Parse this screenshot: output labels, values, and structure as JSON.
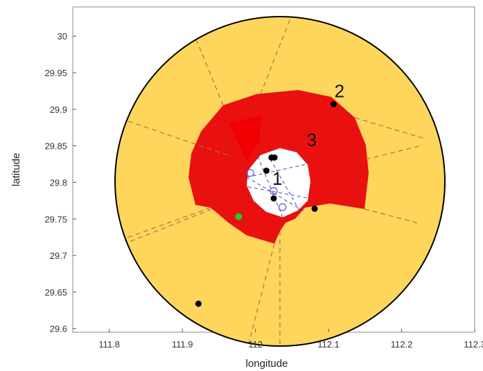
{
  "chart_data": {
    "type": "scatter",
    "title": "",
    "xlabel": "longitude",
    "ylabel": "latitude",
    "xlim": [
      111.75,
      112.3
    ],
    "ylim": [
      29.595,
      30.04
    ],
    "x_ticks": [
      "111.8",
      "111.9",
      "112",
      "112.1",
      "112.2",
      "112.3"
    ],
    "y_ticks": [
      "29.6",
      "29.65",
      "29.7",
      "29.75",
      "29.8",
      "29.85",
      "29.9",
      "29.95",
      "30"
    ],
    "grid": false,
    "legend": "none",
    "region_labels": [
      {
        "text": "1",
        "x": 112.03,
        "y": 29.805
      },
      {
        "text": "2",
        "x": 112.115,
        "y": 29.925
      },
      {
        "text": "3",
        "x": 112.077,
        "y": 29.858
      }
    ],
    "regions": {
      "outer_circle": {
        "center": [
          112.02,
          29.805
        ],
        "radius_deg": 0.26,
        "color": "#FFD65C"
      },
      "red_ring": {
        "color": "#E8110F"
      },
      "inner_white": {
        "color": "#FFFFFF"
      },
      "boundary_color": "#000000"
    },
    "points": [
      {
        "x": 112.107,
        "y": 29.907,
        "color": "#000000"
      },
      {
        "x": 112.081,
        "y": 29.764,
        "color": "#000000"
      },
      {
        "x": 111.922,
        "y": 29.634,
        "color": "#000000"
      },
      {
        "x": 112.022,
        "y": 29.834,
        "color": "#000000"
      },
      {
        "x": 112.026,
        "y": 29.834,
        "color": "#000000"
      },
      {
        "x": 112.015,
        "y": 29.816,
        "color": "#000000"
      },
      {
        "x": 112.025,
        "y": 29.778,
        "color": "#000000"
      },
      {
        "x": 111.977,
        "y": 29.753,
        "color": "#22CC22"
      }
    ],
    "open_markers": [
      {
        "x": 111.993,
        "y": 29.813
      },
      {
        "x": 112.025,
        "y": 29.788
      },
      {
        "x": 112.037,
        "y": 29.766
      }
    ],
    "marker_colors": {
      "open": "#5555DD",
      "dashed_lines": "#B07040",
      "inner_dashed": "#4444AA"
    }
  }
}
